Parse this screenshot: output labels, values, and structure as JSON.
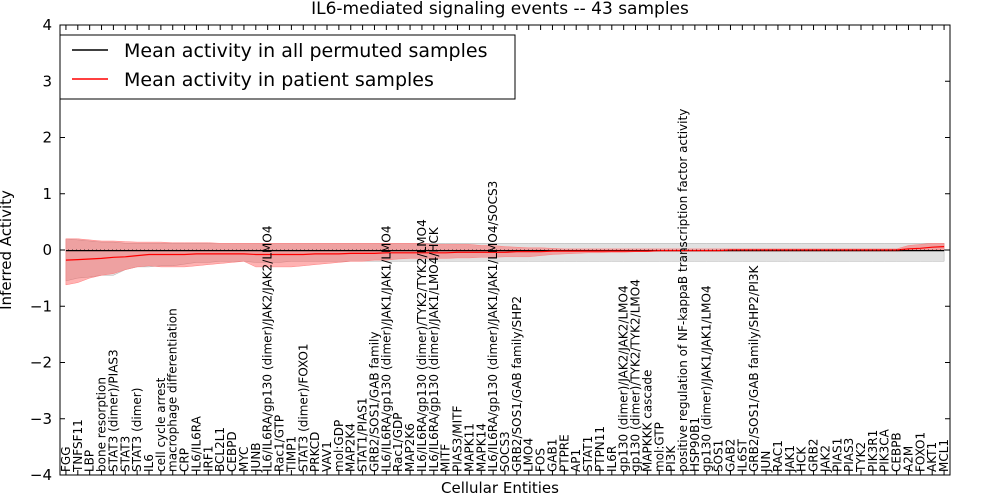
{
  "chart_data": {
    "type": "line",
    "title": "IL6-mediated signaling events -- 43 samples",
    "xlabel": "Cellular Entities",
    "ylabel": "Inferred Activity",
    "ylim": [
      -4,
      4
    ],
    "yticks": [
      -4,
      -3,
      -2,
      -1,
      0,
      1,
      2,
      3,
      4
    ],
    "ytick_labels": [
      "−4",
      "−3",
      "−2",
      "−1",
      "0",
      "1",
      "2",
      "3",
      "4"
    ],
    "grid": false,
    "legend_position": "top-left",
    "categories": [
      "FGG",
      "TNFSF11",
      "LBP",
      "bone resorption",
      "STAT3 (dimer)/PIAS3",
      "STAT3",
      "STAT3 (dimer)",
      "IL6",
      "cell cycle arrest",
      "macrophage differentiation",
      "CRP",
      "IL6/IL6RA",
      "IRF1",
      "BCL2L1",
      "CEBPD",
      "MYC",
      "JUNB",
      "IL6/IL6RA/gp130 (dimer)/JAK2/JAK2/LMO4",
      "Rac1/GTP",
      "TIMP1",
      "STAT3 (dimer)/FOXO1",
      "PRKCD",
      "VAV1",
      "mol:GDP",
      "MAP2K4",
      "STAT1/PIAS1",
      "GRB2/SOS1/GAB family",
      "IL6/IL6RA/gp130 (dimer)/JAK1/JAK1/LMO4",
      "Rac1/GDP",
      "MAP2K6",
      "IL6/IL6RA/gp130 (dimer)/TYK2/TYK2/LMO4",
      "IL6/IL6RA/gp130 (dimer)/JAK1/LMO4/HCK",
      "MITF",
      "PIAS3/MITF",
      "MAPK11",
      "MAPK14",
      "IL6/IL6RA/gp130 (dimer)/JAK1/JAK1/LMO4/SOCS3",
      "SOCS3",
      "GRB2/SOS1/GAB family/SHP2",
      "LMO4",
      "FOS",
      "GAB1",
      "PTPRE",
      "AP1",
      "STAT1",
      "PTPN11",
      "IL6R",
      "gp130 (dimer)/JAK2/JAK2/LMO4",
      "gp130 (dimer)/TYK2/TYK2/LMO4",
      "MAPKKK cascade",
      "mol:GTP",
      "PI3K",
      "positive regulation of NF-kappaB transcription factor activity",
      "HSP90B1",
      "gp130 (dimer)/JAK1/JAK1/LMO4",
      "SOS1",
      "GAB2",
      "IL6ST",
      "GRB2/SOS1/GAB family/SHP2/PI3K",
      "JUN",
      "RAC1",
      "JAK1",
      "HCK",
      "GRB2",
      "JAK2",
      "PIAS1",
      "PIAS3",
      "TYK2",
      "PIK3R1",
      "PIK3CA",
      "CEBPB",
      "A2M",
      "FOXO1",
      "AKT1",
      "MCL1"
    ],
    "series": [
      {
        "name": "Mean activity in all permuted samples",
        "color": "#000000",
        "values": [
          -0.01,
          -0.01,
          -0.01,
          -0.01,
          -0.01,
          -0.01,
          -0.01,
          -0.01,
          -0.01,
          -0.01,
          -0.01,
          -0.01,
          -0.01,
          -0.01,
          -0.01,
          -0.01,
          -0.01,
          -0.01,
          -0.01,
          -0.01,
          -0.01,
          -0.01,
          -0.01,
          -0.01,
          -0.01,
          -0.01,
          -0.01,
          -0.01,
          -0.01,
          -0.01,
          -0.01,
          -0.01,
          -0.01,
          -0.01,
          -0.01,
          -0.01,
          -0.01,
          -0.01,
          -0.01,
          -0.01,
          -0.01,
          -0.01,
          -0.01,
          -0.01,
          -0.01,
          -0.01,
          -0.01,
          -0.01,
          -0.01,
          -0.01,
          -0.01,
          -0.01,
          -0.01,
          -0.01,
          -0.01,
          -0.01,
          -0.01,
          -0.01,
          -0.01,
          -0.01,
          -0.01,
          -0.01,
          -0.01,
          -0.01,
          -0.01,
          -0.01,
          -0.01,
          -0.01,
          -0.01,
          -0.01,
          -0.01,
          -0.01,
          -0.01,
          -0.01,
          -0.01
        ],
        "band_low": [
          -0.55,
          -0.5,
          -0.48,
          -0.45,
          -0.45,
          -0.35,
          -0.3,
          -0.3,
          -0.28,
          -0.28,
          -0.25,
          -0.22,
          -0.22,
          -0.2,
          -0.2,
          -0.2,
          -0.22,
          -0.22,
          -0.22,
          -0.2,
          -0.2,
          -0.2,
          -0.2,
          -0.2,
          -0.2,
          -0.2,
          -0.2,
          -0.2,
          -0.2,
          -0.2,
          -0.2,
          -0.2,
          -0.2,
          -0.2,
          -0.2,
          -0.2,
          -0.2,
          -0.2,
          -0.2,
          -0.2,
          -0.2,
          -0.2,
          -0.2,
          -0.2,
          -0.2,
          -0.2,
          -0.2,
          -0.2,
          -0.2,
          -0.2,
          -0.2,
          -0.2,
          -0.2,
          -0.2,
          -0.2,
          -0.2,
          -0.2,
          -0.2,
          -0.2,
          -0.2,
          -0.2,
          -0.2,
          -0.2,
          -0.2,
          -0.2,
          -0.2,
          -0.2,
          -0.2,
          -0.2,
          -0.2,
          -0.2,
          -0.2,
          -0.2,
          -0.2,
          -0.2
        ],
        "band_high": [
          0.2,
          0.18,
          0.16,
          0.14,
          0.14,
          0.12,
          0.12,
          0.12,
          0.12,
          0.12,
          0.12,
          0.12,
          0.12,
          0.12,
          0.12,
          0.12,
          0.12,
          0.12,
          0.12,
          0.12,
          0.12,
          0.12,
          0.12,
          0.12,
          0.12,
          0.12,
          0.12,
          0.12,
          0.12,
          0.12,
          0.12,
          0.12,
          0.12,
          0.12,
          0.12,
          0.12,
          0.12,
          0.12,
          0.12,
          0.12,
          0.12,
          0.12,
          0.12,
          0.12,
          0.12,
          0.12,
          0.12,
          0.12,
          0.12,
          0.12,
          0.12,
          0.12,
          0.12,
          0.12,
          0.12,
          0.12,
          0.12,
          0.12,
          0.12,
          0.12,
          0.12,
          0.12,
          0.12,
          0.12,
          0.12,
          0.12,
          0.12,
          0.12,
          0.12,
          0.12,
          0.12,
          0.12,
          0.12,
          0.12,
          0.12
        ]
      },
      {
        "name": "Mean activity in patient samples",
        "color": "#ff0000",
        "values": [
          -0.18,
          -0.17,
          -0.16,
          -0.15,
          -0.13,
          -0.12,
          -0.1,
          -0.08,
          -0.08,
          -0.08,
          -0.08,
          -0.07,
          -0.07,
          -0.07,
          -0.07,
          -0.07,
          -0.08,
          -0.08,
          -0.08,
          -0.08,
          -0.08,
          -0.07,
          -0.07,
          -0.07,
          -0.06,
          -0.06,
          -0.06,
          -0.05,
          -0.05,
          -0.05,
          -0.05,
          -0.05,
          -0.05,
          -0.04,
          -0.04,
          -0.04,
          -0.04,
          -0.04,
          -0.03,
          -0.03,
          -0.03,
          -0.02,
          -0.02,
          -0.02,
          -0.02,
          -0.02,
          -0.02,
          -0.02,
          -0.02,
          -0.02,
          -0.01,
          -0.01,
          -0.01,
          -0.01,
          -0.01,
          -0.01,
          0.0,
          0.0,
          0.0,
          0.0,
          0.0,
          0.0,
          0.0,
          0.0,
          0.0,
          0.0,
          0.0,
          0.0,
          0.0,
          0.0,
          0.0,
          0.02,
          0.03,
          0.05,
          0.06
        ],
        "band_low": [
          -0.62,
          -0.58,
          -0.5,
          -0.45,
          -0.42,
          -0.35,
          -0.3,
          -0.28,
          -0.3,
          -0.3,
          -0.3,
          -0.28,
          -0.26,
          -0.24,
          -0.22,
          -0.2,
          -0.3,
          -0.3,
          -0.3,
          -0.3,
          -0.28,
          -0.26,
          -0.24,
          -0.22,
          -0.2,
          -0.2,
          -0.18,
          -0.18,
          -0.16,
          -0.15,
          -0.15,
          -0.15,
          -0.15,
          -0.14,
          -0.14,
          -0.13,
          -0.13,
          -0.12,
          -0.12,
          -0.12,
          -0.1,
          -0.08,
          -0.07,
          -0.06,
          -0.05,
          -0.05,
          -0.04,
          -0.04,
          -0.03,
          -0.03,
          -0.02,
          -0.02,
          -0.02,
          -0.02,
          -0.02,
          -0.02,
          -0.02,
          -0.02,
          -0.02,
          -0.02,
          -0.02,
          -0.02,
          -0.02,
          -0.02,
          -0.02,
          -0.02,
          -0.02,
          -0.02,
          -0.02,
          -0.02,
          -0.02,
          -0.01,
          0.0,
          0.0,
          0.01
        ],
        "band_high": [
          0.2,
          0.2,
          0.18,
          0.16,
          0.16,
          0.15,
          0.14,
          0.14,
          0.14,
          0.13,
          0.13,
          0.13,
          0.13,
          0.12,
          0.12,
          0.12,
          0.12,
          0.12,
          0.12,
          0.12,
          0.12,
          0.12,
          0.12,
          0.12,
          0.12,
          0.12,
          0.12,
          0.12,
          0.12,
          0.12,
          0.12,
          0.1,
          0.1,
          0.1,
          0.1,
          0.08,
          0.08,
          0.06,
          0.05,
          0.04,
          0.04,
          0.03,
          0.02,
          0.02,
          0.02,
          0.02,
          0.02,
          0.02,
          0.02,
          0.02,
          0.02,
          0.02,
          0.02,
          0.02,
          0.02,
          0.02,
          0.02,
          0.02,
          0.02,
          0.02,
          0.02,
          0.02,
          0.02,
          0.02,
          0.02,
          0.02,
          0.02,
          0.02,
          0.02,
          0.02,
          0.02,
          0.08,
          0.1,
          0.12,
          0.12
        ]
      }
    ]
  }
}
